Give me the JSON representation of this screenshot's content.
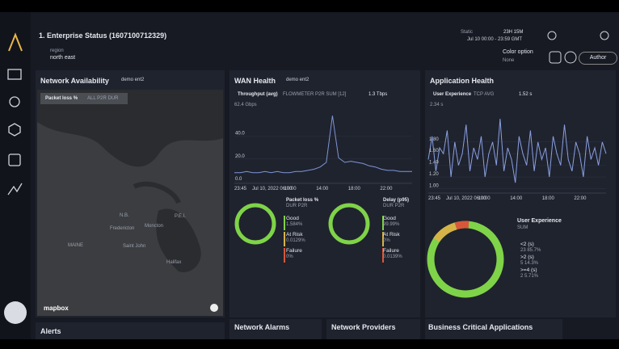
{
  "header": {
    "title": "1. Enterprise Status (1607100712329)",
    "time_mode": "Static",
    "time_range": "23H 15M",
    "time_span": "Jul 10 00:00 - 23:59 GMT",
    "author_button": "Author"
  },
  "filter": {
    "label": "region",
    "value": "north east"
  },
  "color_option": {
    "label": "Color option",
    "value": "None"
  },
  "network_availability": {
    "title": "Network Availability",
    "filter": "demo ent2",
    "metric": "Packet loss %",
    "metric_sub": "ALL P2R DUR",
    "map_labels": [
      "MAINE",
      "Fredericton",
      "Moncton",
      "Saint John",
      "Halifax",
      "N.B.",
      "P.E.I."
    ],
    "attribution": "mapbox"
  },
  "wan_health": {
    "title": "WAN Health",
    "filter": "demo ent2",
    "chart": {
      "series_name": "Throughput (avg)",
      "series_sub": "FLOWMETER P2R SUM [12]",
      "current": "1.3 Tbps",
      "max_label": "62.4 Gbps",
      "ylim": [
        0,
        62.4
      ],
      "yticks": [
        {
          "value": 40,
          "label": "40.0"
        },
        {
          "value": 20,
          "label": "20.0"
        },
        {
          "value": 0,
          "label": "0.0"
        }
      ],
      "x_labels": [
        "23:45",
        "Jul 10, 2022 06:00",
        "10:00",
        "14:00",
        "18:00",
        "22:00"
      ],
      "values": [
        8,
        8,
        9,
        8,
        8,
        9,
        8,
        9,
        8,
        8,
        9,
        9,
        10,
        11,
        13,
        17,
        58,
        21,
        17,
        18,
        17,
        16,
        14,
        13,
        11,
        10,
        10,
        9,
        9,
        9
      ]
    },
    "donuts": [
      {
        "title": "Packet loss %",
        "subtitle": "DUR P2R",
        "legend": [
          {
            "label": "Good",
            "value": "1.584%"
          },
          {
            "label": "At Risk",
            "value": "0.0129%"
          },
          {
            "label": "Failure",
            "value": "0%"
          }
        ]
      },
      {
        "title": "Delay (p95)",
        "subtitle": "DUR P2R",
        "legend": [
          {
            "label": "Good",
            "value": "99.99%"
          },
          {
            "label": "At Risk",
            "value": "0%"
          },
          {
            "label": "Failure",
            "value": "0.0139%"
          }
        ]
      }
    ]
  },
  "application_health": {
    "title": "Application Health",
    "chart": {
      "series_name": "User Experience",
      "series_sub": "TCP   AVG",
      "current": "1.52 s",
      "max_label": "2.34 s",
      "ylim": [
        0.95,
        2.34
      ],
      "yticks": [
        {
          "value": 1.8,
          "label": "1.80"
        },
        {
          "value": 1.6,
          "label": "1.60"
        },
        {
          "value": 1.4,
          "label": "1.40"
        },
        {
          "value": 1.2,
          "label": "1.20"
        },
        {
          "value": 1.0,
          "label": "1.00"
        }
      ],
      "x_labels": [
        "23:45",
        "Jul 10, 2022 06:00",
        "10:00",
        "14:00",
        "18:00",
        "22:00"
      ],
      "values": [
        1.5,
        1.9,
        1.3,
        1.7,
        1.6,
        2.0,
        1.2,
        1.8,
        1.4,
        1.6,
        2.1,
        1.3,
        1.7,
        1.5,
        1.9,
        1.2,
        1.6,
        1.8,
        1.4,
        2.2,
        1.3,
        1.7,
        1.5,
        1.1,
        1.9,
        1.6,
        1.4,
        2.0,
        1.3,
        1.8,
        1.5,
        1.7,
        1.2,
        1.9,
        1.6,
        1.4,
        2.1,
        1.5,
        1.3,
        1.8,
        1.6,
        1.2,
        1.9,
        1.5,
        1.7,
        1.4,
        1.8,
        1.6
      ]
    },
    "donut": {
      "title": "User Experience",
      "subtitle": "SUM",
      "legend": [
        {
          "label": "<2 (s)",
          "value": "23  85.7%"
        },
        {
          "label": ">2 (s)",
          "value": "5  14.3%"
        },
        {
          "label": ">=4 (s)",
          "value": "2  5.71%"
        }
      ]
    }
  },
  "bottom_panels": [
    "Alerts",
    "Network Alarms",
    "Network Providers",
    "Business Critical Applications"
  ]
}
